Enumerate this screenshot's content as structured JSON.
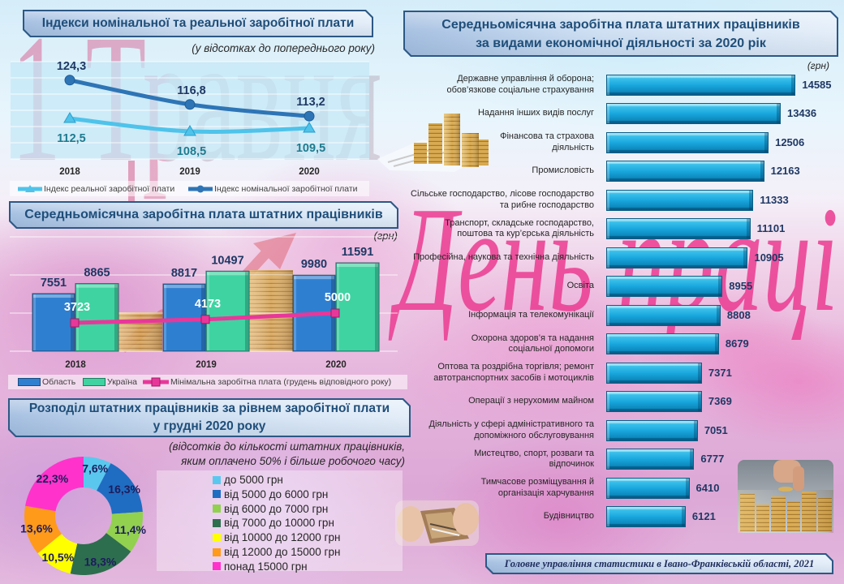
{
  "decor": {
    "may_day": "1 Травня",
    "labor_day": "День праці"
  },
  "footer": {
    "text": "Головне управління статистики в Івано-Франківській області, 2021"
  },
  "chart_data": [
    {
      "type": "line",
      "title": "Індекси номінальної та реальної заробітної плати",
      "subtitle": "(у відсотках до попереднього року)",
      "categories": [
        "2018",
        "2019",
        "2020"
      ],
      "series": [
        {
          "name": "Індекс реальної заробітної плати",
          "values": [
            112.5,
            108.5,
            109.5
          ],
          "labels": [
            "112,5",
            "108,5",
            "109,5"
          ],
          "color": "#4fc3ea",
          "marker": "triangle"
        },
        {
          "name": "Індекс номінальної заробітної плати",
          "values": [
            124.3,
            116.8,
            113.2
          ],
          "labels": [
            "124,3",
            "116,8",
            "113,2"
          ],
          "color": "#2e75b6",
          "marker": "circle"
        }
      ],
      "xlabel": "",
      "ylabel": "",
      "ylim": [
        100,
        130
      ],
      "grid": true,
      "legend_position": "bottom"
    },
    {
      "type": "bar",
      "title": "Середньомісячна заробітна плата штатних працівників",
      "unit": "(грн)",
      "categories": [
        "2018",
        "2019",
        "2020"
      ],
      "series": [
        {
          "name": "Область",
          "type": "bar",
          "values": [
            7551,
            8817,
            9980
          ],
          "color": "#2f7fd1"
        },
        {
          "name": "Україна",
          "type": "bar",
          "values": [
            8865,
            10497,
            11591
          ],
          "color": "#3fd3a2"
        },
        {
          "name": "Мінімальна заробітна плата (грудень відповідного року)",
          "type": "line",
          "values": [
            3723,
            4173,
            5000
          ],
          "color": "#e8379a",
          "marker": "square"
        }
      ],
      "xlabel": "",
      "ylabel": "",
      "ylim": [
        0,
        15000
      ],
      "grid": true,
      "legend_position": "bottom"
    },
    {
      "type": "pie",
      "variant": "donut",
      "title": "Розподіл штатних працівників за рівнем заробітної плати у грудні 2020 року",
      "title_lines": [
        "Розподіл штатних працівників за рівнем заробітної плати",
        "у грудні 2020 року"
      ],
      "subtitle_lines": [
        "(відсотків до кількості штатних працівників,",
        "яким оплачено 50% і більше робочого часу)"
      ],
      "categories": [
        "до 5000 грн",
        "від 5000 до 6000 грн",
        "від 6000 до 7000 грн",
        "від 7000 до 10000 грн",
        "від 10000 до 12000 грн",
        "від 12000 до 15000 грн",
        "понад 15000 грн"
      ],
      "values": [
        7.6,
        16.3,
        11.4,
        18.3,
        10.5,
        13.6,
        22.3
      ],
      "labels": [
        "7,6%",
        "16,3%",
        "11,4%",
        "18,3%",
        "10,5%",
        "13,6%",
        "22,3%"
      ],
      "colors": [
        "#5ac8ee",
        "#1f6dc2",
        "#92d050",
        "#2d6e4e",
        "#ffff00",
        "#ff9a1a",
        "#ff33cc"
      ],
      "legend_position": "right"
    },
    {
      "type": "bar",
      "orientation": "horizontal",
      "title": "Середньомісячна заробітна плата штатних працівників за видами економічної діяльності за 2020 рік",
      "title_lines": [
        "Середньомісячна заробітна плата штатних працівників",
        "за видами економічної діяльності за 2020 рік"
      ],
      "unit": "(грн)",
      "categories": [
        "Державне управління й оборона;\nобов’язкове соціальне страхування",
        "Надання інших видів послуг",
        "Фінансова та страхова\nдіяльність",
        "Промисловість",
        "Сільське господарство, лісове господарство\nта рибне господарство",
        "Транспорт, складське господарство,\nпоштова та кур’єрська діяльність",
        "Професійна, наукова та технічна діяльність",
        "Освіта",
        "Інформація та телекомунікації",
        "Охорона здоров’я та надання\nсоціальної допомоги",
        "Оптова та роздрібна торгівля; ремонт\nавтотранспортних засобів і мотоциклів",
        "Операції з нерухомим майном",
        "Діяльність у сфері адміністративного та\nдопоміжного обслуговування",
        "Мистецтво, спорт, розваги та\nвідпочинок",
        "Тимчасове розміщування й\nорганізація харчування",
        "Будівництво"
      ],
      "values": [
        14585,
        13436,
        12506,
        12163,
        11333,
        11101,
        10905,
        8955,
        8808,
        8679,
        7371,
        7369,
        7051,
        6777,
        6410,
        6121
      ],
      "color": "#1aa7de",
      "xlabel": "",
      "ylabel": "",
      "grid": false
    }
  ]
}
